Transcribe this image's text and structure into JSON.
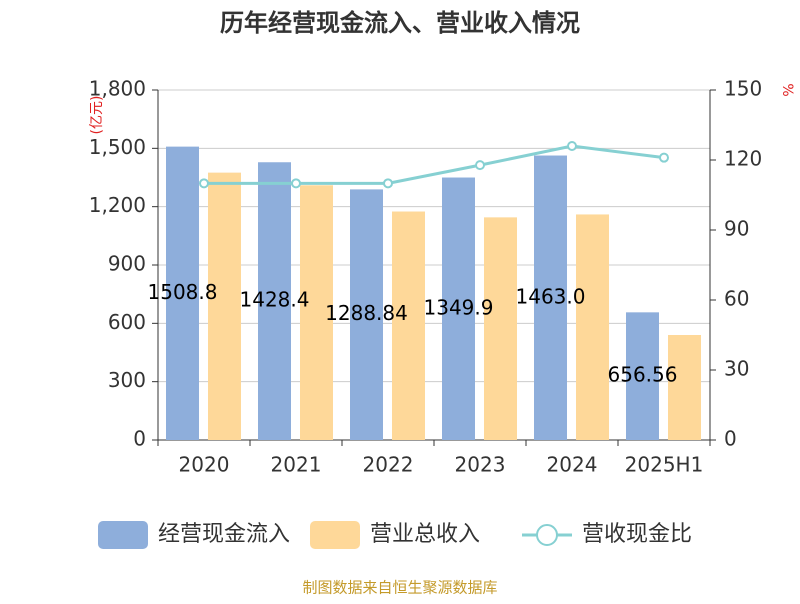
{
  "chart_data": {
    "type": "bar-line",
    "title": "历年经营现金流入、营业收入情况",
    "y_unit": "(亿元)",
    "y2_unit": "%",
    "categories": [
      "2020",
      "2021",
      "2022",
      "2023",
      "2024",
      "2025H1"
    ],
    "series": [
      {
        "name": "经营现金流入",
        "color": "#8eaedb",
        "type": "bar",
        "values": [
          1508.8,
          1428.4,
          1288.84,
          1349.9,
          1463.0,
          656.56
        ],
        "value_labels": [
          "1508.8",
          "1428.4",
          "1288.84",
          "1349.9",
          "1463.0",
          "656.56"
        ]
      },
      {
        "name": "营业总收入",
        "color": "#fed899",
        "type": "bar",
        "values": [
          1375,
          1310,
          1175,
          1145,
          1160,
          540
        ]
      },
      {
        "name": "营收现金比",
        "color": "#86d0d2",
        "type": "line",
        "axis": "y2",
        "values": [
          110,
          110,
          110,
          117.8,
          126,
          121
        ]
      }
    ],
    "ylim": [
      0,
      1800
    ],
    "yticks": [
      0,
      300,
      600,
      900,
      {
        "value": 1200,
        "label": "1,200"
      },
      {
        "value": 1500,
        "label": "1,500"
      },
      {
        "value": 1800,
        "label": "1,800"
      }
    ],
    "y2lim": [
      0,
      150
    ],
    "y2ticks": [
      0,
      30,
      60,
      90,
      120,
      150
    ],
    "grid": true,
    "source": "制图数据来自恒生聚源数据库"
  }
}
